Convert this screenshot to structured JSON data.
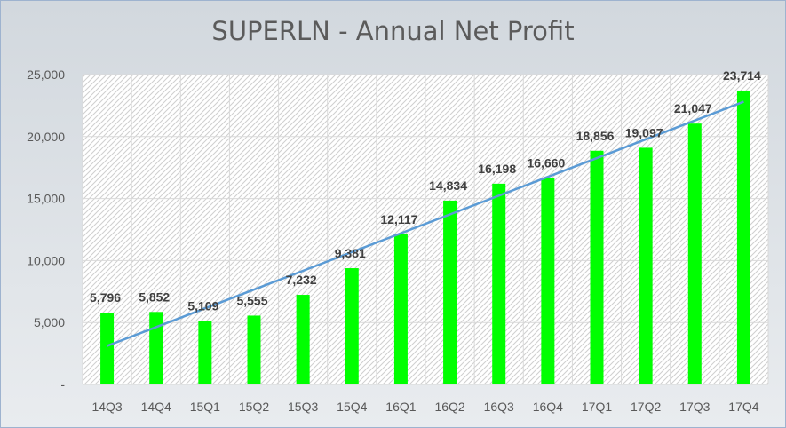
{
  "chart_data": {
    "type": "bar",
    "title": "SUPERLN - Annual Net Profit",
    "xlabel": "",
    "ylabel": "",
    "categories": [
      "14Q3",
      "14Q4",
      "15Q1",
      "15Q2",
      "15Q3",
      "15Q4",
      "16Q1",
      "16Q2",
      "16Q3",
      "16Q4",
      "17Q1",
      "17Q2",
      "17Q3",
      "17Q4"
    ],
    "values": [
      5796,
      5852,
      5109,
      5555,
      7232,
      9381,
      12117,
      14834,
      16198,
      16660,
      18856,
      19097,
      21047,
      23714
    ],
    "data_labels": [
      "5,796",
      "5,852",
      "5,109",
      "5,555",
      "7,232",
      "9,381",
      "12,117",
      "14,834",
      "16,198",
      "16,660",
      "18,856",
      "19,097",
      "21,047",
      "23,714"
    ],
    "ylim": [
      0,
      25000
    ],
    "yticks": [
      0,
      5000,
      10000,
      15000,
      20000,
      25000
    ],
    "ytick_labels": [
      "-",
      "5,000",
      "10,000",
      "15,000",
      "20,000",
      "25,000"
    ],
    "trendline": {
      "type": "linear"
    },
    "bar_color": "#00ff00",
    "trend_color": "#5b9bd5",
    "grid": true,
    "legend": "none"
  }
}
